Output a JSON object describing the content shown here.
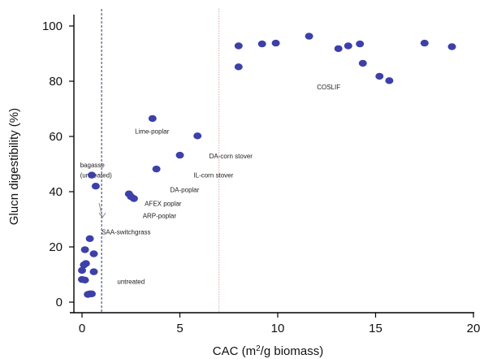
{
  "chart_data": {
    "type": "scatter",
    "xlabel": "CAC (m²/g biomass)",
    "ylabel": "Glucn digestibility (%)",
    "xlim": [
      -0.5,
      20.5
    ],
    "ylim": [
      -1,
      105
    ],
    "x_ticks": [
      0,
      5,
      10,
      15,
      20
    ],
    "y_ticks": [
      0,
      20,
      40,
      60,
      80,
      100
    ],
    "grid": false,
    "marker_color": "#3d40a8",
    "points": [
      {
        "x": 0.3,
        "y": 2.8
      },
      {
        "x": 0.4,
        "y": 3.0
      },
      {
        "x": 0.5,
        "y": 3.0
      },
      {
        "x": 0.0,
        "y": 8.2
      },
      {
        "x": 0.15,
        "y": 8.0
      },
      {
        "x": 0.0,
        "y": 11.5
      },
      {
        "x": 0.1,
        "y": 13.5
      },
      {
        "x": 0.2,
        "y": 14.0
      },
      {
        "x": 0.6,
        "y": 11.0
      },
      {
        "x": 0.15,
        "y": 19.0
      },
      {
        "x": 0.6,
        "y": 17.5
      },
      {
        "x": 0.4,
        "y": 23.0
      },
      {
        "x": 0.5,
        "y": 46.0
      },
      {
        "x": 0.7,
        "y": 42.0
      },
      {
        "x": 2.4,
        "y": 39.2
      },
      {
        "x": 2.5,
        "y": 38.2
      },
      {
        "x": 2.65,
        "y": 37.5
      },
      {
        "x": 3.6,
        "y": 66.5
      },
      {
        "x": 3.8,
        "y": 48.2
      },
      {
        "x": 5.0,
        "y": 53.2
      },
      {
        "x": 5.9,
        "y": 60.2
      },
      {
        "x": 8.0,
        "y": 92.8
      },
      {
        "x": 8.0,
        "y": 85.2
      },
      {
        "x": 9.2,
        "y": 93.5
      },
      {
        "x": 9.9,
        "y": 93.8
      },
      {
        "x": 11.6,
        "y": 96.3
      },
      {
        "x": 13.1,
        "y": 91.8
      },
      {
        "x": 13.6,
        "y": 92.8
      },
      {
        "x": 14.2,
        "y": 93.5
      },
      {
        "x": 14.35,
        "y": 86.5
      },
      {
        "x": 15.2,
        "y": 81.8
      },
      {
        "x": 15.7,
        "y": 80.2
      },
      {
        "x": 17.5,
        "y": 93.8
      },
      {
        "x": 18.9,
        "y": 92.5
      }
    ],
    "reference_lines": [
      {
        "x": 1.0,
        "color": "#1a1a66",
        "style": "dashed"
      },
      {
        "x": 7.0,
        "color": "#d9a0a0",
        "style": "dotted"
      }
    ],
    "annotations": [
      {
        "text": "Lime-poplar",
        "x": 2.7,
        "y": 61.0
      },
      {
        "text": "DA-corn stover",
        "x": 6.5,
        "y": 52.0
      },
      {
        "text": "IL-corn stover",
        "x": 5.7,
        "y": 45.2
      },
      {
        "text": "DA-poplar",
        "x": 4.5,
        "y": 39.8
      },
      {
        "text": "AFEX poplar",
        "x": 3.2,
        "y": 34.8
      },
      {
        "text": "ARP-poplar",
        "x": 3.1,
        "y": 30.5
      },
      {
        "text": "bagasse",
        "x": -0.1,
        "y": 48.8
      },
      {
        "text": "(untreated)",
        "x": -0.1,
        "y": 45.2
      },
      {
        "text": "SAA-switchgrass",
        "x": 1.0,
        "y": 24.6
      },
      {
        "text": "untreated",
        "x": 1.8,
        "y": 6.6
      },
      {
        "text": "COSLIF",
        "x": 12.0,
        "y": 77.0
      }
    ]
  }
}
